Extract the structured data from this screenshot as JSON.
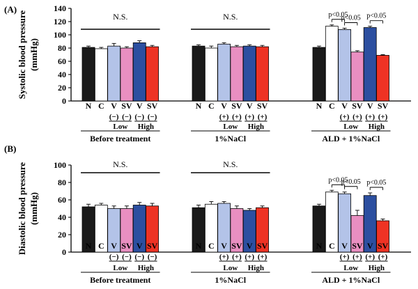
{
  "figure": {
    "bar_colors": [
      "#1a1a1a",
      "#ffffff",
      "#b3c3e8",
      "#e98fc1",
      "#2c4fa0",
      "#ee3324"
    ],
    "n_bar_color": "#1a1a1a"
  },
  "chart_data": [
    {
      "type": "bar",
      "panel_label": "(A)",
      "ylabel": "Systolic blood pressure (mmHg)",
      "ylabel_line1": "Systolic blood pressure",
      "ylabel_line2": "(mmHg)",
      "ylim": [
        0,
        140
      ],
      "yticks": [
        "0",
        "20",
        "40",
        "60",
        "80",
        "100",
        "120",
        "140"
      ],
      "groups": [
        {
          "name": "Before treatment",
          "categories": [
            "N",
            "C",
            "V",
            "SV",
            "V",
            "SV"
          ],
          "treatment": [
            "",
            "",
            "(−)",
            "(−)",
            "(−)",
            "(−)"
          ],
          "dose": [
            {
              "label": "Low"
            },
            {
              "label": "High"
            }
          ],
          "values": [
            81,
            79,
            83,
            80,
            88,
            82
          ],
          "errors": [
            2,
            2,
            4,
            2,
            3,
            2
          ],
          "annotations": [
            {
              "text": "N.S."
            }
          ]
        },
        {
          "name": "1%NaCl",
          "categories": [
            "N",
            "C",
            "V",
            "SV",
            "V",
            "SV"
          ],
          "treatment": [
            "",
            "",
            "(+)",
            "(+)",
            "(+)",
            "(+)"
          ],
          "dose": [
            {
              "label": "Low"
            },
            {
              "label": "High"
            }
          ],
          "values": [
            83,
            80,
            86,
            82,
            83,
            82
          ],
          "errors": [
            2,
            3,
            2,
            2,
            2,
            2
          ],
          "annotations": [
            {
              "text": "N.S."
            }
          ]
        },
        {
          "name": "ALD + 1%NaCl",
          "categories": [
            "N",
            "C",
            "V",
            "SV",
            "V",
            "SV"
          ],
          "treatment": [
            "",
            "",
            "(+)",
            "(+)",
            "(+)",
            "(+)"
          ],
          "dose": [
            {
              "label": "Low"
            },
            {
              "label": "High"
            }
          ],
          "values": [
            81,
            113,
            108,
            74,
            111,
            69
          ],
          "errors": [
            2,
            2,
            2,
            2,
            2,
            1
          ],
          "annotations": [
            {
              "text": "p<0.05",
              "from": 1,
              "to": 2
            },
            {
              "text": "p<0.05",
              "from": 2,
              "to": 3
            },
            {
              "text": "p<0.05",
              "from": 4,
              "to": 5
            }
          ]
        }
      ]
    },
    {
      "type": "bar",
      "panel_label": "(B)",
      "ylabel": "Diastolic blood pressure (mmHg)",
      "ylabel_line1": "Diastolic blood pressure",
      "ylabel_line2": "(mmHg)",
      "ylim": [
        0,
        100
      ],
      "yticks": [
        "0",
        "20",
        "40",
        "60",
        "80",
        "100"
      ],
      "groups": [
        {
          "name": "Before  treatment",
          "categories": [
            "N",
            "C",
            "V",
            "SV",
            "V",
            "SV"
          ],
          "treatment": [
            "",
            "",
            "(−)",
            "(−)",
            "(−)",
            "(−)"
          ],
          "dose": [
            {
              "label": "Low"
            },
            {
              "label": "High"
            }
          ],
          "values": [
            52,
            54,
            50,
            50,
            54,
            53
          ],
          "errors": [
            3,
            2,
            3,
            3,
            3,
            3
          ],
          "annotations": [
            {
              "text": "N.S."
            }
          ]
        },
        {
          "name": "1%NaCl",
          "categories": [
            "N",
            "C",
            "V",
            "SV",
            "V",
            "SV"
          ],
          "treatment": [
            "",
            "",
            "(+)",
            "(+)",
            "(+)",
            "(+)"
          ],
          "dose": [
            {
              "label": "Low"
            },
            {
              "label": "High"
            }
          ],
          "values": [
            51,
            55,
            56,
            50,
            48,
            51
          ],
          "errors": [
            3,
            3,
            2,
            3,
            2,
            2
          ],
          "annotations": [
            {
              "text": "N.S."
            }
          ]
        },
        {
          "name": "ALD + 1%NaCl",
          "categories": [
            "N",
            "C",
            "V",
            "SV",
            "V",
            "SV"
          ],
          "treatment": [
            "",
            "",
            "(+)",
            "(+)",
            "(+)",
            "(+)"
          ],
          "dose": [
            {
              "label": "Low"
            },
            {
              "label": "High"
            }
          ],
          "values": [
            53,
            69,
            67,
            42,
            65,
            36
          ],
          "errors": [
            2,
            2,
            2,
            6,
            3,
            2
          ],
          "annotations": [
            {
              "text": "p<0.05",
              "from": 1,
              "to": 2
            },
            {
              "text": "p<0.05",
              "from": 2,
              "to": 3
            },
            {
              "text": "p<0.05",
              "from": 4,
              "to": 5
            }
          ]
        }
      ]
    }
  ]
}
